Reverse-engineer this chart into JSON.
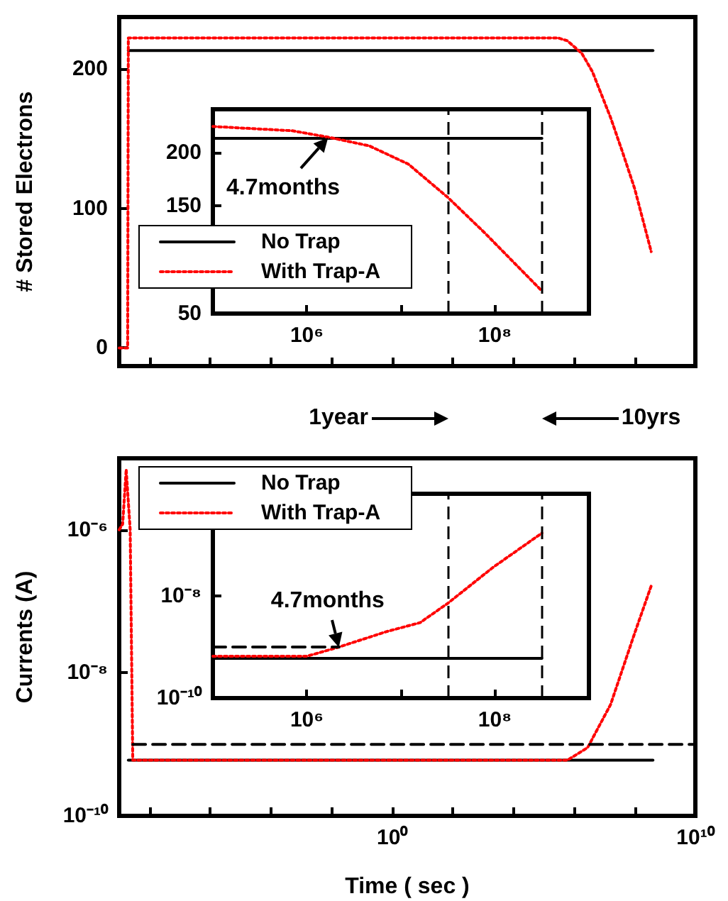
{
  "chart_data": [
    {
      "type": "line",
      "ylabel": "# Stored Electrons",
      "log": "x",
      "xlim": [
        1e-09,
        10000000000.0
      ],
      "ylim": [
        -13,
        237
      ],
      "xticks": [
        {
          "value": 1e-08,
          "label": null
        },
        {
          "value": 1e-06,
          "label": null
        },
        {
          "value": 0.0001,
          "label": null
        },
        {
          "value": 0.01,
          "label": null
        },
        {
          "value": 1,
          "label": null
        },
        {
          "value": 100,
          "label": null
        },
        {
          "value": 10000,
          "label": null
        },
        {
          "value": 1000000.0,
          "label": null
        },
        {
          "value": 100000000.0,
          "label": null
        },
        {
          "value": 10000000000.0,
          "label": null
        }
      ],
      "yticks": [
        0,
        100,
        200
      ],
      "tick_labels": "y",
      "legend": "left",
      "marker": "none",
      "series": [
        {
          "name": "No Trap",
          "color": "#000000",
          "line_style": "solid",
          "x": [
            2e-09,
            400000000.0
          ],
          "values": [
            213,
            213
          ]
        },
        {
          "name": "With Trap-A",
          "color": "#ff0000",
          "line_style": "dotted",
          "x": [
            1e-09,
            1.9e-09,
            2e-09,
            1000,
            300000.0,
            600000.0,
            1800000.0,
            4000000.0,
            16000000.0,
            40000000.0,
            100000000.0,
            350000000.0
          ],
          "values": [
            0,
            0,
            222,
            222,
            222,
            220,
            211,
            198,
            165,
            140,
            114,
            69
          ]
        }
      ]
    },
    {
      "type": "line",
      "log": "x",
      "xlim": [
        100000.0,
        1000000000.0
      ],
      "ylim": [
        50,
        240
      ],
      "xticks": [
        {
          "value": 100000.0,
          "label": null
        },
        {
          "value": 1000000.0,
          "label": "10⁶"
        },
        {
          "value": 10000000.0,
          "label": null
        },
        {
          "value": 100000000.0,
          "label": "10⁸"
        },
        {
          "value": 1000000000.0,
          "label": null
        }
      ],
      "yticks": [
        50,
        {
          "value": 100,
          "label": null
        },
        150,
        200
      ],
      "marker": "none",
      "annotations": [
        {
          "text": "4.7months",
          "x": 1700000.0,
          "y": 213
        }
      ],
      "ref_lines": [
        {
          "axis": "x",
          "value": 31600000.0,
          "label": null,
          "color": "#000000",
          "line_style": "dashed"
        },
        {
          "axis": "x",
          "value": 316000000.0,
          "label": null,
          "color": "#000000",
          "line_style": "dashed"
        }
      ],
      "series": [
        {
          "color": "#000000",
          "line_style": "solid",
          "x": [
            100000.0,
            316000000.0
          ],
          "values": [
            213,
            213
          ]
        },
        {
          "color": "#ff0000",
          "line_style": "dotted",
          "x": [
            100000.0,
            700000.0,
            1700000.0,
            4600000.0,
            12000000.0,
            31600000.0,
            78000000.0,
            316000000.0
          ],
          "values": [
            224,
            220,
            214,
            206,
            189,
            158,
            125,
            71
          ]
        }
      ]
    },
    {
      "type": "line",
      "xlabel": "Time ( sec )",
      "ylabel": "Currents (A)",
      "log": "xy",
      "xlim": [
        1e-09,
        10000000000.0
      ],
      "ylim": [
        1e-10,
        1e-05
      ],
      "xticks": [
        {
          "value": 1e-08,
          "label": null
        },
        {
          "value": 1e-06,
          "label": null
        },
        {
          "value": 0.0001,
          "label": null
        },
        {
          "value": 0.01,
          "label": null
        },
        {
          "value": 1,
          "label": "10⁰"
        },
        {
          "value": 100,
          "label": null
        },
        {
          "value": 10000,
          "label": null
        },
        {
          "value": 1000000.0,
          "label": null
        },
        {
          "value": 100000000.0,
          "label": null
        },
        {
          "value": 10000000000.0,
          "label": "10¹⁰"
        }
      ],
      "yticks": [
        {
          "value": 1e-10,
          "label": "10⁻¹⁰"
        },
        {
          "value": 1e-08,
          "label": "10⁻⁸"
        },
        {
          "value": 1e-06,
          "label": "10⁻⁶"
        }
      ],
      "legend": "top left",
      "marker": "none",
      "series": [
        {
          "name": "No Trap",
          "color": "#000000",
          "line_style": "solid",
          "x": [
            2e-09,
            400000000.0
          ],
          "values": [
            6e-10,
            6e-10
          ]
        },
        {
          "name": "With Trap-A",
          "color": "#ff0000",
          "line_style": "dotted",
          "x": [
            1e-09,
            1.3e-09,
            1.7e-09,
            2.3e-09,
            2.8e-09,
            1000,
            600000.0,
            2800000.0,
            16000000.0,
            100000000.0,
            360000000.0
          ],
          "values": [
            1e-06,
            1.2e-06,
            7e-06,
            1e-06,
            6e-10,
            6e-10,
            6e-10,
            9e-10,
            3.6e-09,
            3.6e-08,
            1.7e-07
          ]
        },
        {
          "color": "#000000",
          "line_style": "dashed",
          "x": [
            2.8e-09,
            10000000000.0
          ],
          "values": [
            1e-09,
            1e-09
          ]
        }
      ]
    },
    {
      "type": "line",
      "log": "xy",
      "xlim": [
        100000.0,
        1000000000.0
      ],
      "ylim": [
        1e-10,
        1e-06
      ],
      "xticks": [
        {
          "value": 100000.0,
          "label": null
        },
        {
          "value": 1000000.0,
          "label": "10⁶"
        },
        {
          "value": 10000000.0,
          "label": null
        },
        {
          "value": 100000000.0,
          "label": "10⁸"
        },
        {
          "value": 1000000000.0,
          "label": null
        }
      ],
      "yticks": [
        {
          "value": 1e-10,
          "label": "10⁻¹⁰"
        },
        {
          "value": 1e-08,
          "label": "10⁻⁸"
        }
      ],
      "marker": "none",
      "annotations": [
        {
          "text": "4.7months",
          "x": 2200000.0,
          "y": 1e-09
        },
        "1year",
        "10yrs"
      ],
      "ref_lines": [
        {
          "axis": "x",
          "value": 31600000.0,
          "label": null,
          "color": "#000000",
          "line_style": "dashed"
        },
        {
          "axis": "x",
          "value": 316000000.0,
          "label": null,
          "color": "#000000",
          "line_style": "dashed"
        }
      ],
      "series": [
        {
          "color": "#000000",
          "line_style": "solid",
          "x": [
            100000.0,
            316000000.0
          ],
          "values": [
            6e-10,
            6e-10
          ]
        },
        {
          "color": "#ff0000",
          "line_style": "dotted",
          "x": [
            100000.0,
            1000000.0,
            2200000.0,
            7000000.0,
            16000000.0,
            31600000.0,
            95000000.0,
            316000000.0
          ],
          "values": [
            6.6e-10,
            6.6e-10,
            1e-09,
            2e-09,
            3e-09,
            7.2e-09,
            3.6e-08,
            1.7e-07
          ]
        },
        {
          "color": "#000000",
          "line_style": "dashed",
          "x": [
            100000.0,
            2200000.0
          ],
          "values": [
            1e-09,
            1e-09
          ]
        }
      ]
    }
  ]
}
